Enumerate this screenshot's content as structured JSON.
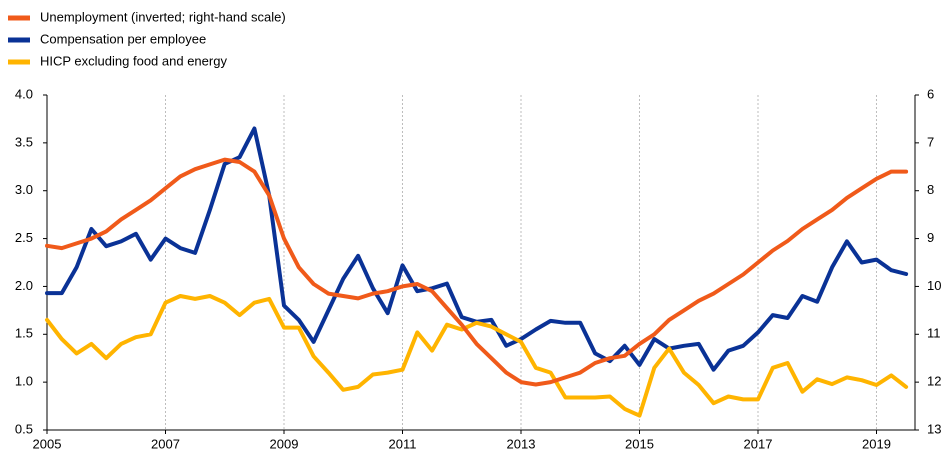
{
  "chart_data": {
    "type": "line",
    "x": [
      2005,
      2005.25,
      2005.5,
      2005.75,
      2006,
      2006.25,
      2006.5,
      2006.75,
      2007,
      2007.25,
      2007.5,
      2007.75,
      2008,
      2008.25,
      2008.5,
      2008.75,
      2009,
      2009.25,
      2009.5,
      2009.75,
      2010,
      2010.25,
      2010.5,
      2010.75,
      2011,
      2011.25,
      2011.5,
      2011.75,
      2012,
      2012.25,
      2012.5,
      2012.75,
      2013,
      2013.25,
      2013.5,
      2013.75,
      2014,
      2014.25,
      2014.5,
      2014.75,
      2015,
      2015.25,
      2015.5,
      2015.75,
      2016,
      2016.25,
      2016.5,
      2016.75,
      2017,
      2017.25,
      2017.5,
      2017.75,
      2018,
      2018.25,
      2018.5,
      2018.75,
      2019,
      2019.25,
      2019.5
    ],
    "series": [
      {
        "name": "Unemployment (inverted; right-hand scale)",
        "color": "#f05a1a",
        "axis": "y2",
        "values": [
          9.15,
          9.2,
          9.1,
          9.0,
          8.85,
          8.6,
          8.4,
          8.2,
          7.95,
          7.7,
          7.55,
          7.45,
          7.35,
          7.4,
          7.6,
          8.1,
          9.0,
          9.6,
          9.95,
          10.15,
          10.2,
          10.25,
          10.15,
          10.1,
          10.0,
          9.95,
          10.1,
          10.45,
          10.8,
          11.2,
          11.5,
          11.8,
          12.0,
          12.05,
          12.0,
          11.9,
          11.8,
          11.6,
          11.5,
          11.45,
          11.2,
          11.0,
          10.7,
          10.5,
          10.3,
          10.15,
          9.95,
          9.75,
          9.5,
          9.25,
          9.05,
          8.8,
          8.6,
          8.4,
          8.15,
          7.95,
          7.75,
          7.6,
          7.6
        ]
      },
      {
        "name": "Compensation per employee",
        "color": "#0a3296",
        "values": [
          1.93,
          1.93,
          2.2,
          2.6,
          2.42,
          2.47,
          2.55,
          2.28,
          2.5,
          2.4,
          2.35,
          2.8,
          3.28,
          3.35,
          3.65,
          2.95,
          1.8,
          1.65,
          1.42,
          1.75,
          2.08,
          2.32,
          1.98,
          1.72,
          2.22,
          1.95,
          1.98,
          2.03,
          1.68,
          1.63,
          1.65,
          1.38,
          1.45,
          1.55,
          1.64,
          1.62,
          1.62,
          1.3,
          1.22,
          1.38,
          1.18,
          1.45,
          1.35,
          1.38,
          1.4,
          1.13,
          1.33,
          1.38,
          1.52,
          1.7,
          1.67,
          1.9,
          1.84,
          2.2,
          2.47,
          2.25,
          2.28,
          2.17,
          2.13
        ]
      },
      {
        "name": "HICP excluding food and energy",
        "color": "#ffb400",
        "values": [
          1.65,
          1.45,
          1.3,
          1.4,
          1.25,
          1.4,
          1.47,
          1.5,
          1.83,
          1.9,
          1.87,
          1.9,
          1.83,
          1.7,
          1.83,
          1.87,
          1.57,
          1.57,
          1.27,
          1.1,
          0.92,
          0.95,
          1.08,
          1.1,
          1.13,
          1.52,
          1.33,
          1.6,
          1.55,
          1.62,
          1.58,
          1.5,
          1.42,
          1.15,
          1.1,
          0.84,
          0.84,
          0.84,
          0.85,
          0.72,
          0.65,
          1.15,
          1.35,
          1.1,
          0.97,
          0.78,
          0.85,
          0.82,
          0.82,
          1.15,
          1.2,
          0.9,
          1.03,
          0.98,
          1.05,
          1.02,
          0.97,
          1.07,
          0.95
        ]
      }
    ],
    "xlim": [
      2005,
      2019.65
    ],
    "xticks": [
      2005,
      2007,
      2009,
      2011,
      2013,
      2015,
      2017,
      2019
    ],
    "ylim": [
      0.5,
      4
    ],
    "yticks": [
      0.5,
      {
        "value": 1,
        "label": "1.0"
      },
      1.5,
      {
        "value": 2,
        "label": "2.0"
      },
      2.5,
      {
        "value": 3,
        "label": "3.0"
      },
      3.5,
      {
        "value": 4,
        "label": "4.0"
      }
    ],
    "y2lim": [
      13,
      6
    ],
    "y2ticks": [
      6,
      7,
      8,
      9,
      10,
      11,
      12,
      13
    ],
    "grid": true,
    "legend": "top-left"
  }
}
